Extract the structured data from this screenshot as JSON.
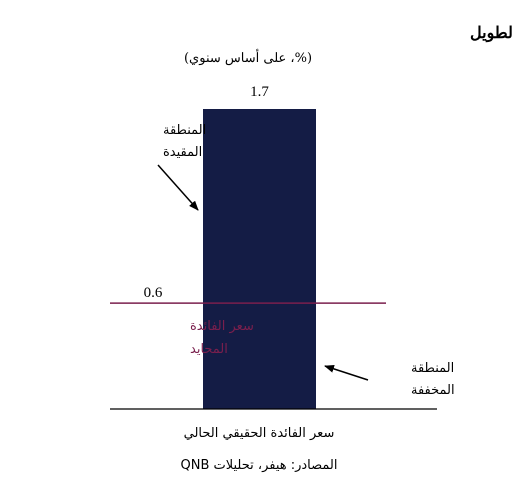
{
  "chart_data": {
    "type": "bar",
    "title": "أسعار الفائدة الحقيقية في الولايات المتحدة في المدى الطويل",
    "subtitle": "(%، على أساس سنوي)",
    "categories": [
      "سعر الفائدة الحقيقي الحالي"
    ],
    "values": [
      1.7
    ],
    "value_labels": [
      "1.7"
    ],
    "ylim": [
      0,
      2
    ],
    "grid": false,
    "reference_line": {
      "value": 0.6,
      "value_label": "0.6",
      "label_line1": "سعر الفائدة",
      "label_line2": "المحايد"
    },
    "annotations": {
      "restrictive_line1": "المنطقة",
      "restrictive_line2": "المقيدة",
      "accommodative_line1": "المنطقة",
      "accommodative_line2": "المخففة"
    },
    "source": "المصادر: هيفر، تحليلات QNB",
    "colors": {
      "bar": "#141c45",
      "neutral_line": "#7a1f4d",
      "neutral_text": "#7a1f4d"
    }
  }
}
